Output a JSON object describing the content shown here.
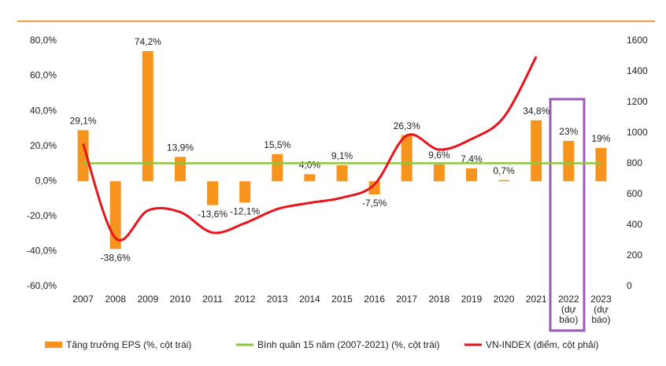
{
  "chart_data": {
    "type": "bar_line_combo",
    "categories": [
      "2007",
      "2008",
      "2009",
      "2010",
      "2011",
      "2012",
      "2013",
      "2014",
      "2015",
      "2016",
      "2017",
      "2018",
      "2019",
      "2020",
      "2021",
      "2022\n(dự\nbáo)",
      "2023\n(dự\nbáo)"
    ],
    "series": [
      {
        "name": "Tăng trưởng EPS (%, cột trái)",
        "type": "bar",
        "color": "#f7941d",
        "values": [
          29.1,
          -38.6,
          74.2,
          13.9,
          -13.6,
          -12.1,
          15.5,
          4.0,
          9.1,
          -7.5,
          26.3,
          9.6,
          7.4,
          0.7,
          34.8,
          23,
          19
        ],
        "value_labels": [
          "29,1%",
          "-38,6%",
          "74,2%",
          "13,9%",
          "-13,6%",
          "-12,1%",
          "15,5%",
          "4,0%",
          "9,1%",
          "-7,5%",
          "26,3%",
          "9,6%",
          "7,4%",
          "0,7%",
          "34,8%",
          "23%",
          "19%"
        ]
      },
      {
        "name": "Bình quân 15 năm (2007-2021) (%, cột trái)",
        "type": "line",
        "color": "#8dc63f",
        "values": [
          10.3,
          10.3,
          10.3,
          10.3,
          10.3,
          10.3,
          10.3,
          10.3,
          10.3,
          10.3,
          10.3,
          10.3,
          10.3,
          10.3,
          10.3,
          10.3,
          10.3
        ]
      },
      {
        "name": "VN-INDEX (điểm, cột phải)",
        "type": "line",
        "axis": "y2",
        "color": "#e8141b",
        "values": [
          930,
          315,
          495,
          485,
          351,
          413,
          505,
          545,
          579,
          665,
          984,
          892,
          961,
          1104,
          1498,
          null,
          null
        ]
      }
    ],
    "ylim": [
      -60,
      80
    ],
    "yticks": [
      {
        "value": -60,
        "label": "-60,0%"
      },
      {
        "value": -40,
        "label": "-40,0%"
      },
      {
        "value": -20,
        "label": "-20,0%"
      },
      {
        "value": 0,
        "label": "0,0%"
      },
      {
        "value": 20,
        "label": "20,0%"
      },
      {
        "value": 40,
        "label": "40,0%"
      },
      {
        "value": 60,
        "label": "60,0%"
      },
      {
        "value": 80,
        "label": "80,0%"
      }
    ],
    "y2lim": [
      0,
      1600
    ],
    "y2ticks": [
      0,
      200,
      400,
      600,
      800,
      1000,
      1200,
      1400,
      1600
    ],
    "legend": "bottom"
  }
}
